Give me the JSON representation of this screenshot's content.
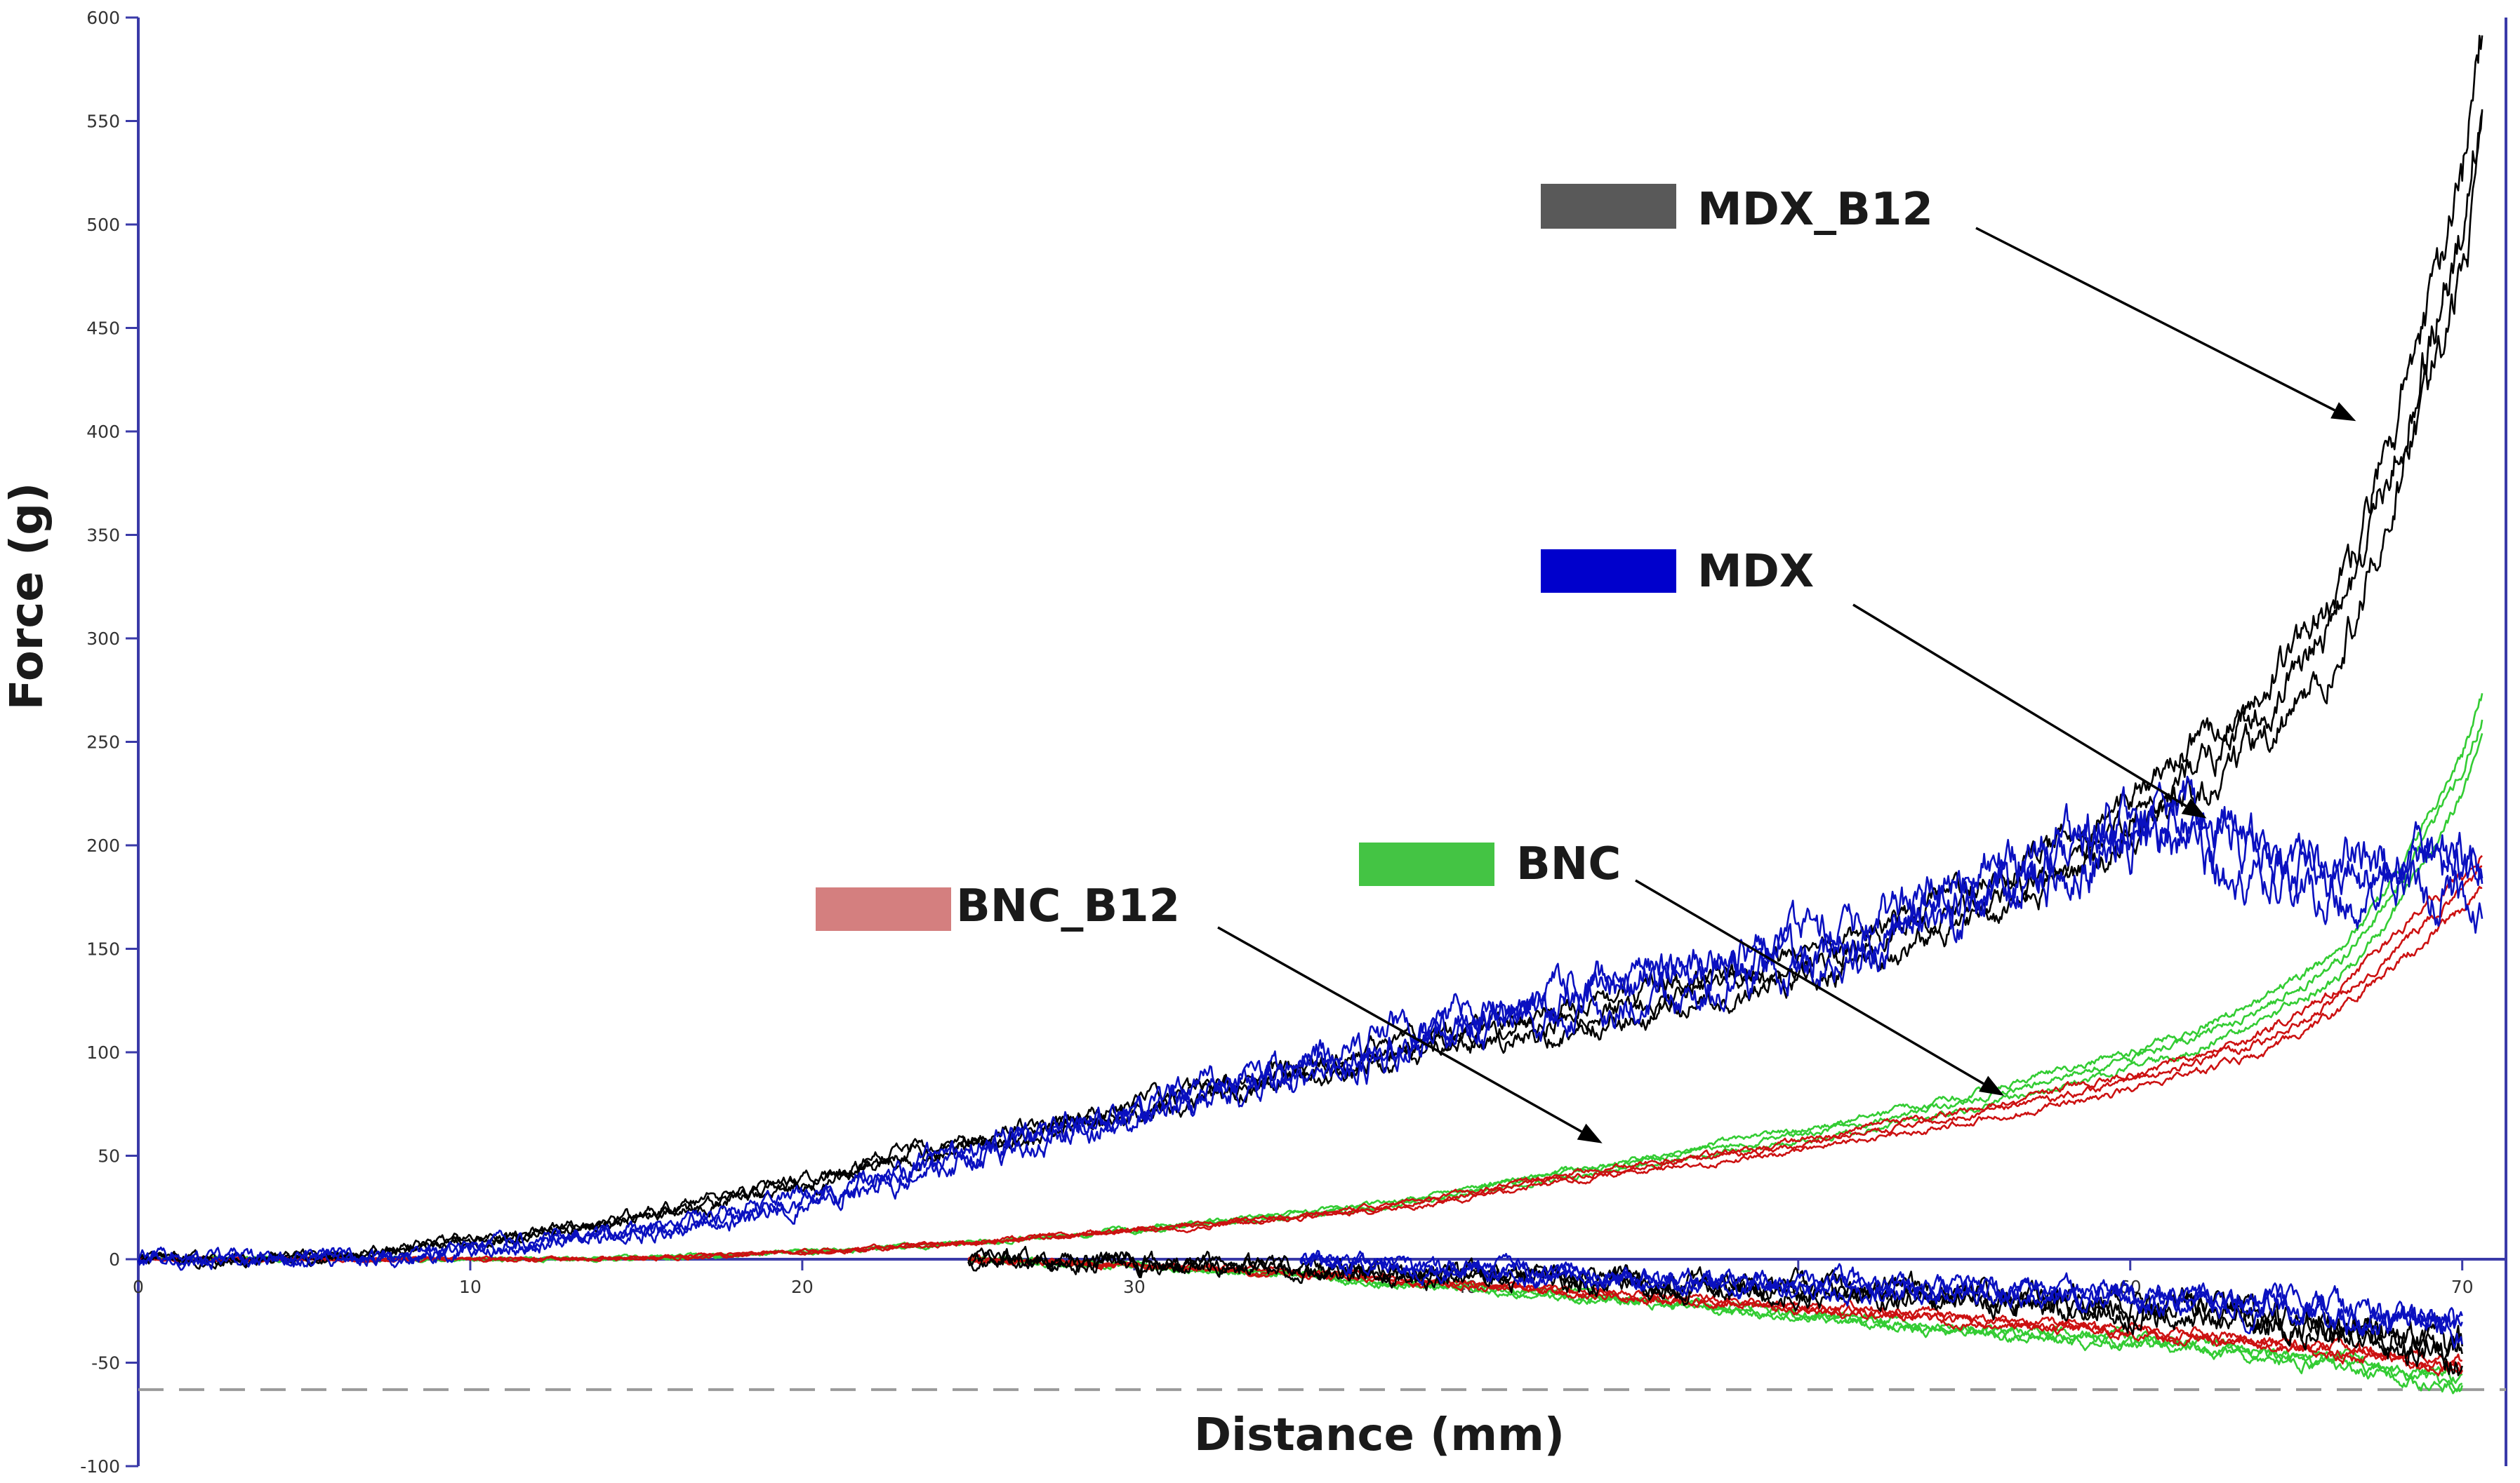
{
  "chart_data": {
    "type": "line",
    "title": "",
    "xlabel": "Distance (mm)",
    "ylabel": "Force (g)",
    "xlim": [
      0,
      71
    ],
    "ylim": [
      -100,
      600
    ],
    "x_ticks": [
      "0",
      "10",
      "20",
      "30",
      "40",
      "50",
      "60",
      "70"
    ],
    "x_tick_values": [
      0,
      10,
      20,
      30,
      40,
      50,
      60,
      70
    ],
    "y_ticks": [
      "600",
      "550",
      "500",
      "450",
      "400",
      "350",
      "300",
      "250",
      "200",
      "150",
      "100",
      "50",
      "0",
      "-50",
      "-100"
    ],
    "y_tick_values": [
      600,
      550,
      500,
      450,
      400,
      350,
      300,
      250,
      200,
      150,
      100,
      50,
      0,
      -50,
      -100
    ],
    "reference_line": -63,
    "series": [
      {
        "name": "MDX_B12",
        "color": "#000000",
        "legend_color": "#595959",
        "points": [
          [
            0,
            0
          ],
          [
            3,
            0
          ],
          [
            5,
            0.5
          ],
          [
            7,
            3
          ],
          [
            9,
            7
          ],
          [
            11,
            11
          ],
          [
            13,
            15
          ],
          [
            15,
            20
          ],
          [
            17,
            26
          ],
          [
            19,
            33
          ],
          [
            21,
            41
          ],
          [
            23,
            50
          ],
          [
            25,
            56
          ],
          [
            27,
            63
          ],
          [
            29,
            69
          ],
          [
            31,
            76
          ],
          [
            33,
            84
          ],
          [
            35,
            91
          ],
          [
            37,
            98
          ],
          [
            39,
            104
          ],
          [
            41,
            111
          ],
          [
            43,
            117
          ],
          [
            45,
            123
          ],
          [
            47,
            130
          ],
          [
            49,
            137
          ],
          [
            51,
            147
          ],
          [
            53,
            158
          ],
          [
            55,
            170
          ],
          [
            57,
            183
          ],
          [
            59,
            202
          ],
          [
            61,
            226
          ],
          [
            63,
            251
          ],
          [
            64,
            265
          ],
          [
            65,
            283
          ],
          [
            66,
            306
          ],
          [
            67,
            337
          ],
          [
            68,
            390
          ],
          [
            69,
            440
          ],
          [
            70,
            500
          ],
          [
            70.6,
            565
          ]
        ],
        "negative": [
          [
            25,
            0
          ],
          [
            30,
            -2
          ],
          [
            35,
            -5
          ],
          [
            40,
            -8
          ],
          [
            45,
            -11
          ],
          [
            50,
            -15
          ],
          [
            55,
            -18
          ],
          [
            58,
            -22
          ],
          [
            60,
            -25
          ],
          [
            62,
            -25
          ],
          [
            64,
            -30
          ],
          [
            66,
            -32
          ],
          [
            68,
            -38
          ],
          [
            70,
            -46
          ]
        ]
      },
      {
        "name": "MDX",
        "color": "#0a10c0",
        "legend_color": "#0000cc",
        "points": [
          [
            0,
            0
          ],
          [
            5,
            0
          ],
          [
            8,
            1
          ],
          [
            10,
            4
          ],
          [
            12,
            8
          ],
          [
            14,
            12
          ],
          [
            16,
            16
          ],
          [
            18,
            21
          ],
          [
            20,
            28
          ],
          [
            22,
            38
          ],
          [
            24,
            46
          ],
          [
            26,
            55
          ],
          [
            28,
            63
          ],
          [
            30,
            71
          ],
          [
            32,
            80
          ],
          [
            34,
            89
          ],
          [
            36,
            98
          ],
          [
            38,
            106
          ],
          [
            40,
            113
          ],
          [
            42,
            120
          ],
          [
            44,
            128
          ],
          [
            46,
            134
          ],
          [
            48,
            140
          ],
          [
            50,
            147
          ],
          [
            52,
            157
          ],
          [
            54,
            170
          ],
          [
            56,
            183
          ],
          [
            58,
            196
          ],
          [
            60,
            210
          ],
          [
            61,
            215
          ],
          [
            62,
            206
          ],
          [
            63,
            198
          ],
          [
            64,
            192
          ],
          [
            65,
            186
          ],
          [
            66,
            185
          ],
          [
            67,
            184
          ],
          [
            68,
            183
          ],
          [
            69,
            187
          ],
          [
            70,
            186
          ],
          [
            70.6,
            180
          ]
        ],
        "negative": [
          [
            35,
            0
          ],
          [
            40,
            -6
          ],
          [
            45,
            -10
          ],
          [
            50,
            -13
          ],
          [
            55,
            -15
          ],
          [
            60,
            -18
          ],
          [
            62,
            -20
          ],
          [
            64,
            -23
          ],
          [
            66,
            -26
          ],
          [
            68,
            -30
          ],
          [
            70,
            -33
          ]
        ]
      },
      {
        "name": "BNC",
        "color": "#33cc33",
        "legend_color": "#44c444",
        "points": [
          [
            0,
            0
          ],
          [
            14,
            0
          ],
          [
            18,
            2
          ],
          [
            22,
            5
          ],
          [
            26,
            9
          ],
          [
            30,
            14
          ],
          [
            34,
            20
          ],
          [
            38,
            27
          ],
          [
            40,
            33
          ],
          [
            42,
            39
          ],
          [
            44,
            44
          ],
          [
            46,
            49
          ],
          [
            48,
            55
          ],
          [
            50,
            60
          ],
          [
            52,
            66
          ],
          [
            54,
            72
          ],
          [
            56,
            80
          ],
          [
            58,
            88
          ],
          [
            60,
            97
          ],
          [
            62,
            107
          ],
          [
            64,
            121
          ],
          [
            66,
            140
          ],
          [
            67,
            155
          ],
          [
            68,
            178
          ],
          [
            69,
            205
          ],
          [
            70,
            235
          ],
          [
            70.6,
            262
          ]
        ],
        "negative": [
          [
            25,
            0
          ],
          [
            30,
            -3
          ],
          [
            35,
            -8
          ],
          [
            40,
            -14
          ],
          [
            45,
            -20
          ],
          [
            50,
            -27
          ],
          [
            55,
            -34
          ],
          [
            60,
            -40
          ],
          [
            62,
            -43
          ],
          [
            64,
            -46
          ],
          [
            66,
            -50
          ],
          [
            68,
            -55
          ],
          [
            70,
            -60
          ]
        ]
      },
      {
        "name": "BNC_B12",
        "color": "#cc1111",
        "legend_color": "#d47f7f",
        "points": [
          [
            0,
            0
          ],
          [
            14,
            0
          ],
          [
            18,
            2
          ],
          [
            22,
            5
          ],
          [
            26,
            9
          ],
          [
            30,
            14
          ],
          [
            34,
            19
          ],
          [
            38,
            26
          ],
          [
            40,
            31
          ],
          [
            42,
            37
          ],
          [
            44,
            42
          ],
          [
            46,
            46
          ],
          [
            48,
            50
          ],
          [
            50,
            55
          ],
          [
            52,
            61
          ],
          [
            54,
            66
          ],
          [
            56,
            72
          ],
          [
            58,
            79
          ],
          [
            60,
            86
          ],
          [
            62,
            95
          ],
          [
            64,
            105
          ],
          [
            66,
            123
          ],
          [
            67,
            136
          ],
          [
            68,
            150
          ],
          [
            69,
            165
          ],
          [
            70,
            178
          ],
          [
            70.6,
            188
          ]
        ],
        "negative": [
          [
            25,
            0
          ],
          [
            30,
            -3
          ],
          [
            35,
            -7
          ],
          [
            40,
            -12
          ],
          [
            45,
            -18
          ],
          [
            50,
            -23
          ],
          [
            55,
            -29
          ],
          [
            60,
            -35
          ],
          [
            62,
            -38
          ],
          [
            64,
            -41
          ],
          [
            66,
            -44
          ],
          [
            68,
            -48
          ],
          [
            70,
            -52
          ]
        ]
      }
    ],
    "annotations": [
      {
        "label": "MDX_B12",
        "target": [
          66.8,
          405
        ]
      },
      {
        "label": "MDX",
        "target": [
          62.3,
          213
        ]
      },
      {
        "label": "BNC",
        "target": [
          56.2,
          79
        ]
      },
      {
        "label": "BNC_B12",
        "target": [
          44.1,
          56
        ]
      }
    ]
  }
}
